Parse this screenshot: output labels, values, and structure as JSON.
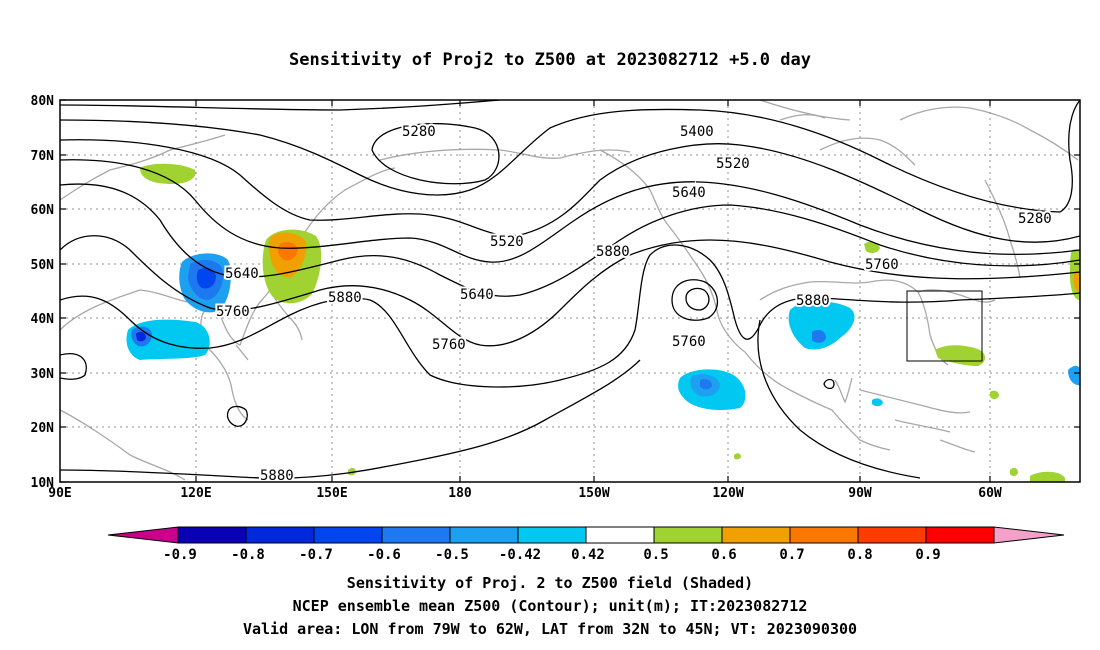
{
  "title": "Sensitivity of Proj2 to Z500 at 2023082712 +5.0 day",
  "lat_labels": [
    "80N",
    "70N",
    "60N",
    "50N",
    "40N",
    "30N",
    "20N",
    "10N"
  ],
  "lon_labels": [
    "90E",
    "120E",
    "150E",
    "180",
    "150W",
    "120W",
    "90W",
    "60W"
  ],
  "colorbar": {
    "labels": [
      "-0.9",
      "-0.8",
      "-0.7",
      "-0.6",
      "-0.5",
      "-0.42",
      "0.42",
      "0.5",
      "0.6",
      "0.7",
      "0.8",
      "0.9"
    ],
    "colors": {
      "below_min": "#c8008c",
      "bins": [
        "#0a00b4",
        "#0028dc",
        "#0046f0",
        "#1e78f0",
        "#1ea0f0",
        "#00c8f0",
        "#ffffff",
        "#a0d232",
        "#f0a000",
        "#fa7800",
        "#ff3c00",
        "#ff0000"
      ],
      "above_max": "#f5a0c8"
    }
  },
  "contour_labels": [
    "5280",
    "5400",
    "5520",
    "5640",
    "5760",
    "5880",
    "5520",
    "5640",
    "5760",
    "5880",
    "5640",
    "5760",
    "5880",
    "5760",
    "5520",
    "5640",
    "5760",
    "5880",
    "5280",
    "5880"
  ],
  "captions": [
    "Sensitivity of Proj. 2 to Z500 field (Shaded)",
    "NCEP ensemble mean Z500 (Contour); unit(m); IT:2023082712",
    "Valid area: LON from 79W to 62W, LAT from 32N to 45N; VT: 2023090300"
  ]
}
